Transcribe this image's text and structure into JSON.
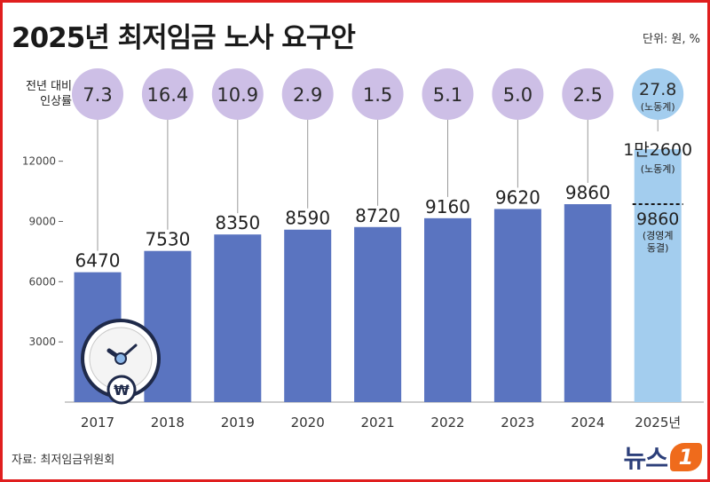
{
  "header": {
    "title": "2025년 최저임금 노사 요구안",
    "unit": "단위: 원, %"
  },
  "rate_label": [
    "전년 대비",
    "인상률"
  ],
  "source": "자료: 최저임금위원회",
  "logo": {
    "text": "뉴스",
    "mark": "1"
  },
  "colors": {
    "bar": "#5a74c0",
    "bar_2025": "#a3cdee",
    "circle": "#cdbfe6",
    "circle_2025": "#a3cdee",
    "frame": "#e01e1e"
  },
  "icon": "wage-clock-icon",
  "chart_data": {
    "type": "bar",
    "title": "2025년 최저임금 노사 요구안",
    "ylim": [
      0,
      13000
    ],
    "yticks": [
      3000,
      6000,
      9000,
      12000
    ],
    "ytick_labels": [
      "3000",
      "6000",
      "9000",
      "12000"
    ],
    "categories": [
      "2017",
      "2018",
      "2019",
      "2020",
      "2021",
      "2022",
      "2023",
      "2024",
      "2025년"
    ],
    "values": [
      6470,
      7530,
      8350,
      8590,
      8720,
      9160,
      9620,
      9860,
      12600
    ],
    "value_labels": [
      "6470",
      "7530",
      "8350",
      "8590",
      "8720",
      "9160",
      "9620",
      "9860",
      "1만2600"
    ],
    "increase_rate": [
      "7.3",
      "16.4",
      "10.9",
      "2.9",
      "1.5",
      "5.1",
      "5.0",
      "2.5",
      "27.8"
    ],
    "rate_note_2025": "(노동계)",
    "labor_2025": {
      "value": 12600,
      "label": "1만2600",
      "note": "(노동계)"
    },
    "employer_2025": {
      "value": 9860,
      "label": "9860",
      "note": [
        "(경영계",
        "동결)"
      ]
    }
  }
}
